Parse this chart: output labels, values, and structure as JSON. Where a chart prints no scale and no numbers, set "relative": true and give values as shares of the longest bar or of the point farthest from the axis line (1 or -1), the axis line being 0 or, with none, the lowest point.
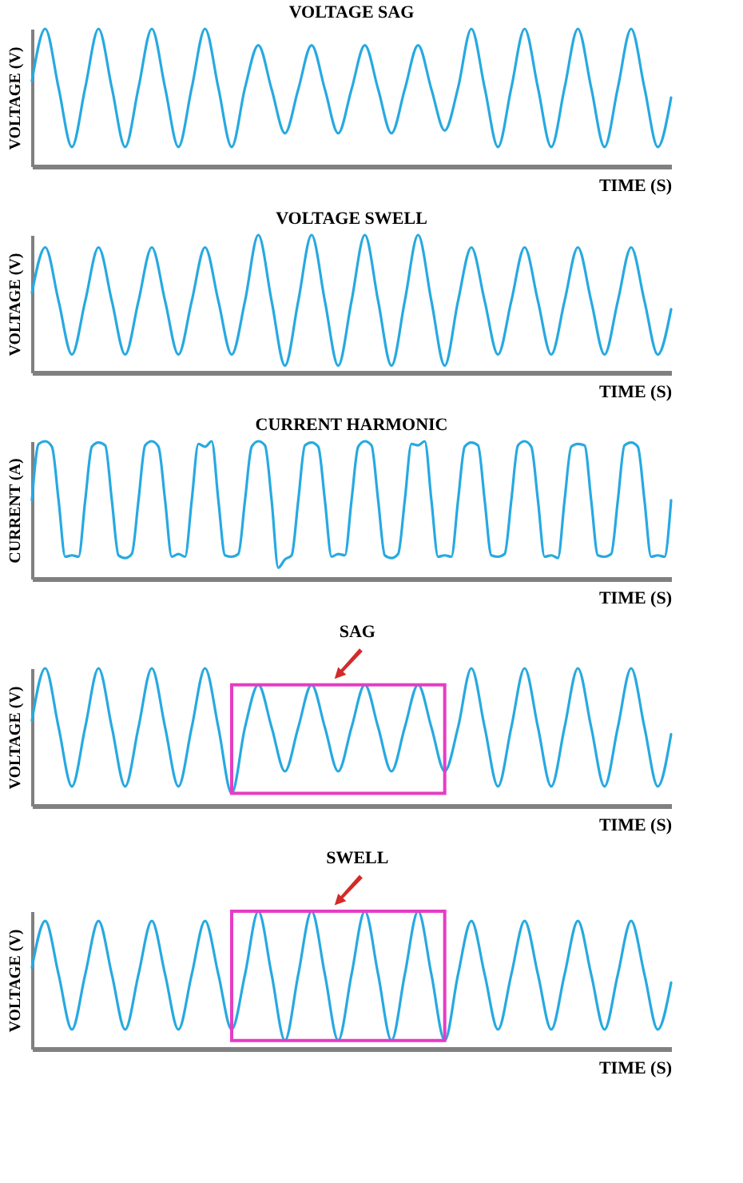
{
  "chart_data": [
    {
      "type": "line",
      "title": "VOLTAGE SAG",
      "xlabel": "TIME (S)",
      "ylabel": "VOLTAGE (V)",
      "relative": true,
      "tick_labels": false,
      "categories": [
        null,
        null,
        null,
        null,
        null,
        null,
        null,
        null,
        null,
        null,
        null,
        null,
        null,
        null,
        null,
        null,
        null,
        null,
        null,
        null,
        null,
        null,
        null,
        null,
        null,
        null,
        null,
        null,
        null,
        null,
        null,
        null,
        null,
        null,
        null,
        null,
        null,
        null,
        null,
        null,
        null,
        null,
        null,
        null,
        null,
        null,
        null,
        null,
        null
      ],
      "series": [
        {
          "color": "#27a9e1",
          "values": [
            0.62,
            1.0,
            0.57,
            0.14,
            0.57,
            1.0,
            0.57,
            0.14,
            0.57,
            1.0,
            0.57,
            0.14,
            0.57,
            1.0,
            0.57,
            0.14,
            0.57,
            0.88,
            0.56,
            0.24,
            0.56,
            0.88,
            0.56,
            0.24,
            0.56,
            0.88,
            0.56,
            0.24,
            0.56,
            0.88,
            0.56,
            0.26,
            0.57,
            1.0,
            0.57,
            0.14,
            0.57,
            1.0,
            0.57,
            0.14,
            0.57,
            1.0,
            0.57,
            0.14,
            0.57,
            1.0,
            0.57,
            0.14,
            0.5
          ]
        }
      ]
    },
    {
      "type": "line",
      "title": "VOLTAGE SWELL",
      "xlabel": "TIME (S)",
      "ylabel": "VOLTAGE (V)",
      "relative": true,
      "tick_labels": false,
      "categories": [
        null,
        null,
        null,
        null,
        null,
        null,
        null,
        null,
        null,
        null,
        null,
        null,
        null,
        null,
        null,
        null,
        null,
        null,
        null,
        null,
        null,
        null,
        null,
        null,
        null,
        null,
        null,
        null,
        null,
        null,
        null,
        null,
        null,
        null,
        null,
        null,
        null,
        null,
        null,
        null,
        null,
        null,
        null,
        null,
        null,
        null,
        null,
        null,
        null
      ],
      "series": [
        {
          "color": "#27a9e1",
          "values": [
            0.58,
            0.91,
            0.52,
            0.13,
            0.52,
            0.91,
            0.52,
            0.13,
            0.52,
            0.91,
            0.52,
            0.13,
            0.52,
            0.91,
            0.52,
            0.13,
            0.52,
            1.0,
            0.52,
            0.05,
            0.52,
            1.0,
            0.52,
            0.05,
            0.52,
            1.0,
            0.52,
            0.05,
            0.52,
            1.0,
            0.52,
            0.05,
            0.52,
            0.91,
            0.52,
            0.13,
            0.52,
            0.91,
            0.52,
            0.13,
            0.52,
            0.91,
            0.52,
            0.13,
            0.52,
            0.91,
            0.52,
            0.13,
            0.46
          ]
        }
      ]
    },
    {
      "type": "line",
      "title": "CURRENT HARMONIC",
      "xlabel": "TIME (S)",
      "ylabel": "CURRENT (A)",
      "relative": true,
      "tick_labels": false,
      "categories": [
        null,
        null,
        null,
        null,
        null,
        null,
        null,
        null,
        null,
        null,
        null,
        null,
        null,
        null,
        null,
        null,
        null,
        null,
        null,
        null,
        null,
        null,
        null,
        null,
        null,
        null,
        null,
        null,
        null,
        null,
        null,
        null,
        null,
        null,
        null,
        null,
        null,
        null,
        null,
        null,
        null,
        null,
        null,
        null,
        null,
        null,
        null,
        null,
        null,
        null,
        null,
        null,
        null,
        null,
        null,
        null,
        null,
        null,
        null,
        null,
        null,
        null,
        null,
        null,
        null,
        null,
        null,
        null,
        null,
        null,
        null,
        null,
        null,
        null,
        null,
        null,
        null,
        null,
        null,
        null,
        null,
        null,
        null,
        null,
        null,
        null,
        null,
        null,
        null,
        null,
        null,
        null,
        null,
        null,
        null,
        null,
        null
      ],
      "series": [
        {
          "color": "#27a9e1",
          "values": [
            0.57,
            0.98,
            1.0,
            0.96,
            0.57,
            0.16,
            0.17,
            0.16,
            0.57,
            0.96,
            0.99,
            0.97,
            0.57,
            0.17,
            0.15,
            0.18,
            0.57,
            0.97,
            1.0,
            0.96,
            0.57,
            0.16,
            0.18,
            0.16,
            0.57,
            0.98,
            0.96,
            1.0,
            0.57,
            0.17,
            0.16,
            0.18,
            0.57,
            0.96,
            1.0,
            0.97,
            0.57,
            0.08,
            0.14,
            0.17,
            0.57,
            0.97,
            0.99,
            0.96,
            0.57,
            0.16,
            0.18,
            0.17,
            0.57,
            0.96,
            1.0,
            0.97,
            0.57,
            0.17,
            0.15,
            0.18,
            0.57,
            0.98,
            0.97,
            1.0,
            0.57,
            0.16,
            0.17,
            0.16,
            0.57,
            0.96,
            0.99,
            0.97,
            0.57,
            0.17,
            0.16,
            0.18,
            0.57,
            0.97,
            1.0,
            0.96,
            0.57,
            0.16,
            0.17,
            0.15,
            0.57,
            0.96,
            0.98,
            0.97,
            0.57,
            0.17,
            0.16,
            0.18,
            0.57,
            0.97,
            0.99,
            0.96,
            0.57,
            0.16,
            0.17,
            0.16,
            0.57
          ]
        }
      ]
    },
    {
      "type": "line",
      "xlabel": "TIME (S)",
      "ylabel": "VOLTAGE (V)",
      "relative": true,
      "tick_labels": false,
      "categories": [
        null,
        null,
        null,
        null,
        null,
        null,
        null,
        null,
        null,
        null,
        null,
        null,
        null,
        null,
        null,
        null,
        null,
        null,
        null,
        null,
        null,
        null,
        null,
        null,
        null,
        null,
        null,
        null,
        null,
        null,
        null,
        null,
        null,
        null,
        null,
        null,
        null,
        null,
        null,
        null,
        null,
        null,
        null,
        null,
        null,
        null,
        null,
        null,
        null
      ],
      "series": [
        {
          "color": "#27a9e1",
          "values": [
            0.62,
            1.0,
            0.57,
            0.14,
            0.57,
            1.0,
            0.57,
            0.14,
            0.57,
            1.0,
            0.57,
            0.14,
            0.57,
            1.0,
            0.57,
            0.09,
            0.57,
            0.88,
            0.57,
            0.25,
            0.57,
            0.88,
            0.57,
            0.25,
            0.57,
            0.88,
            0.57,
            0.25,
            0.57,
            0.88,
            0.57,
            0.25,
            0.57,
            1.0,
            0.57,
            0.14,
            0.57,
            1.0,
            0.57,
            0.14,
            0.57,
            1.0,
            0.57,
            0.14,
            0.57,
            1.0,
            0.57,
            0.14,
            0.52
          ]
        }
      ],
      "annotations": [
        "SAG"
      ]
    },
    {
      "type": "line",
      "xlabel": "TIME (S)",
      "ylabel": "VOLTAGE (V)",
      "relative": true,
      "tick_labels": false,
      "categories": [
        null,
        null,
        null,
        null,
        null,
        null,
        null,
        null,
        null,
        null,
        null,
        null,
        null,
        null,
        null,
        null,
        null,
        null,
        null,
        null,
        null,
        null,
        null,
        null,
        null,
        null,
        null,
        null,
        null,
        null,
        null,
        null,
        null,
        null,
        null,
        null,
        null,
        null,
        null,
        null,
        null,
        null,
        null,
        null,
        null,
        null,
        null,
        null,
        null
      ],
      "series": [
        {
          "color": "#27a9e1",
          "values": [
            0.59,
            0.93,
            0.54,
            0.14,
            0.54,
            0.93,
            0.54,
            0.14,
            0.54,
            0.93,
            0.54,
            0.14,
            0.54,
            0.93,
            0.54,
            0.14,
            0.54,
            1.0,
            0.54,
            0.06,
            0.54,
            1.0,
            0.54,
            0.06,
            0.54,
            1.0,
            0.54,
            0.06,
            0.54,
            1.0,
            0.54,
            0.06,
            0.54,
            0.93,
            0.54,
            0.14,
            0.54,
            0.93,
            0.54,
            0.14,
            0.54,
            0.93,
            0.54,
            0.14,
            0.54,
            0.93,
            0.54,
            0.14,
            0.48
          ]
        }
      ],
      "annotations": [
        "SWELL"
      ]
    }
  ]
}
